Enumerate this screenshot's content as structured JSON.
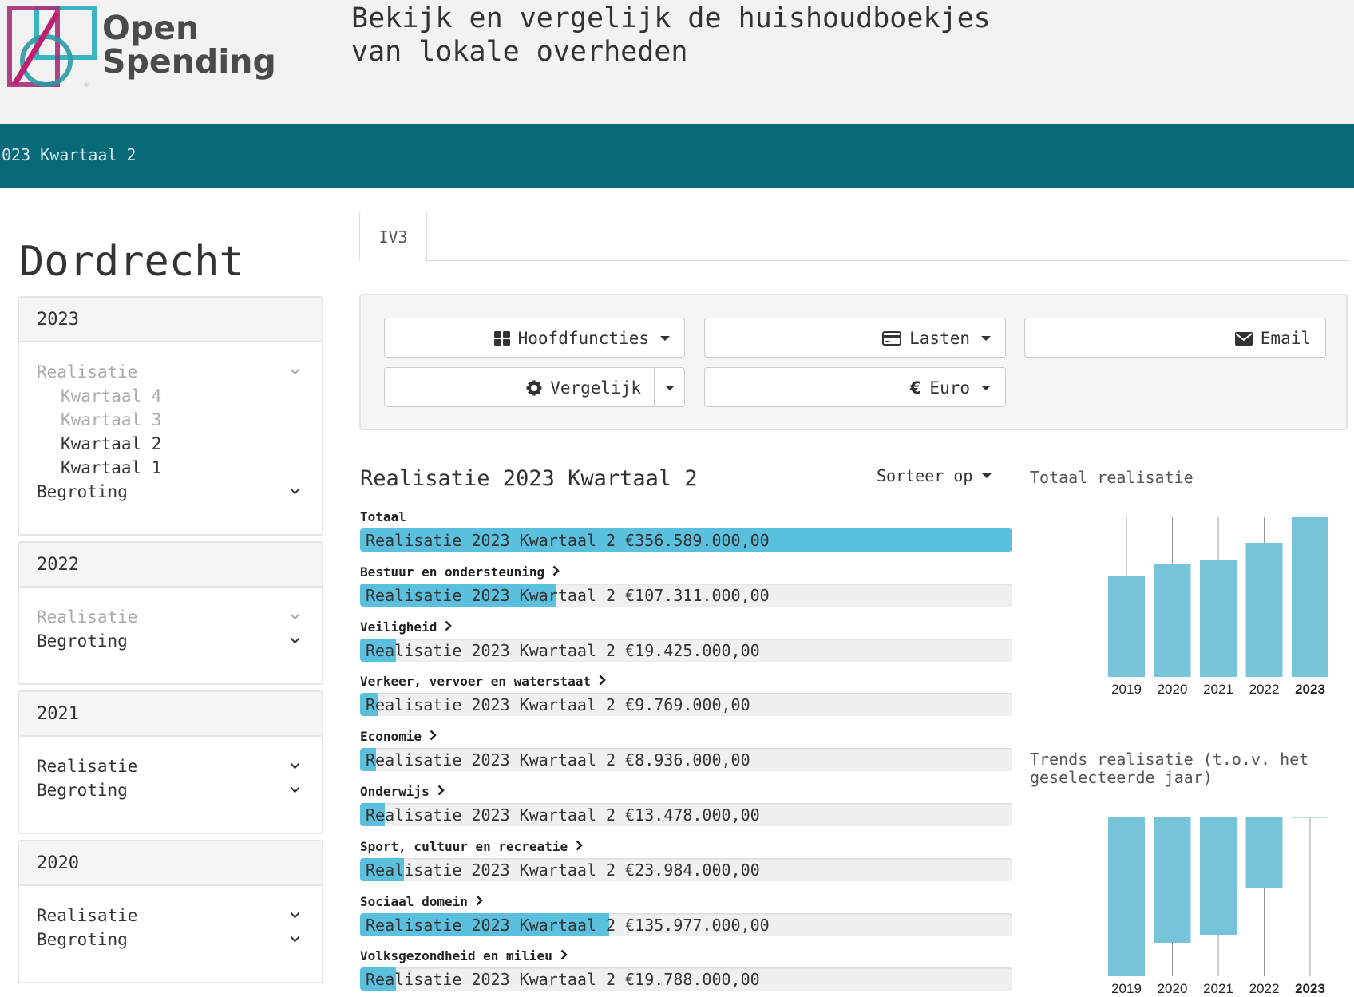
{
  "header": {
    "logo_line1": "Open",
    "logo_line2": "Spending",
    "tagline": "Bekijk en vergelijk de huishoudboekjes\nvan lokale overheden"
  },
  "period_bar": {
    "text": "023 Kwartaal 2"
  },
  "sidebar": {
    "city": "Dordrecht",
    "years": [
      {
        "year": "2023",
        "items": [
          {
            "label": "Realisatie",
            "level": 0,
            "muted": true,
            "chevron": true
          },
          {
            "label": "Kwartaal 4",
            "level": 1,
            "muted": true
          },
          {
            "label": "Kwartaal 3",
            "level": 1,
            "muted": true
          },
          {
            "label": "Kwartaal 2",
            "level": 1,
            "muted": false
          },
          {
            "label": "Kwartaal 1",
            "level": 1,
            "muted": false
          },
          {
            "label": "Begroting",
            "level": 0,
            "muted": false,
            "chevron": true
          }
        ]
      },
      {
        "year": "2022",
        "items": [
          {
            "label": "Realisatie",
            "level": 0,
            "muted": true,
            "chevron": true
          },
          {
            "label": "Begroting",
            "level": 0,
            "muted": false,
            "chevron": true
          }
        ]
      },
      {
        "year": "2021",
        "items": [
          {
            "label": "Realisatie",
            "level": 0,
            "muted": false,
            "chevron": true
          },
          {
            "label": "Begroting",
            "level": 0,
            "muted": false,
            "chevron": true
          }
        ]
      },
      {
        "year": "2020",
        "items": [
          {
            "label": "Realisatie",
            "level": 0,
            "muted": false,
            "chevron": true
          },
          {
            "label": "Begroting",
            "level": 0,
            "muted": false,
            "chevron": true
          }
        ]
      }
    ]
  },
  "tabs": {
    "active": "IV3"
  },
  "controls": {
    "hoofdfuncties": "Hoofdfuncties",
    "lasten": "Lasten",
    "email": "Email",
    "vergelijk": "Vergelijk",
    "euro": "Euro"
  },
  "realisatie": {
    "title": "Realisatie 2023 Kwartaal 2",
    "sort_label": "Sorteer op",
    "max_value": 356589000,
    "rows": [
      {
        "label": "Totaal",
        "value_text": "Realisatie 2023 Kwartaal 2 €356.589.000,00",
        "value": 356589000,
        "has_chevron": false
      },
      {
        "label": "Bestuur en ondersteuning",
        "value_text": "Realisatie 2023 Kwartaal 2 €107.311.000,00",
        "value": 107311000,
        "has_chevron": true
      },
      {
        "label": "Veiligheid",
        "value_text": "Realisatie 2023 Kwartaal 2 €19.425.000,00",
        "value": 19425000,
        "has_chevron": true
      },
      {
        "label": "Verkeer, vervoer en waterstaat",
        "value_text": "Realisatie 2023 Kwartaal 2 €9.769.000,00",
        "value": 9769000,
        "has_chevron": true
      },
      {
        "label": "Economie",
        "value_text": "Realisatie 2023 Kwartaal 2 €8.936.000,00",
        "value": 8936000,
        "has_chevron": true
      },
      {
        "label": "Onderwijs",
        "value_text": "Realisatie 2023 Kwartaal 2 €13.478.000,00",
        "value": 13478000,
        "has_chevron": true
      },
      {
        "label": "Sport, cultuur en recreatie",
        "value_text": "Realisatie 2023 Kwartaal 2 €23.984.000,00",
        "value": 23984000,
        "has_chevron": true
      },
      {
        "label": "Sociaal domein",
        "value_text": "Realisatie 2023 Kwartaal 2 €135.977.000,00",
        "value": 135977000,
        "has_chevron": true
      },
      {
        "label": "Volksgezondheid en milieu",
        "value_text": "Realisatie 2023 Kwartaal 2 €19.788.000,00",
        "value": 19788000,
        "has_chevron": true
      }
    ]
  },
  "chart_data": [
    {
      "type": "bar",
      "title": "Totaal realisatie",
      "categories": [
        "2019",
        "2020",
        "2021",
        "2022",
        "2023"
      ],
      "highlighted": "2023",
      "values": [
        0.63,
        0.71,
        0.73,
        0.84,
        1.0
      ],
      "ylim": [
        0,
        1
      ]
    },
    {
      "type": "bar",
      "title": "Trends realisatie (t.o.v. het geselecteerde jaar)",
      "categories": [
        "2019",
        "2020",
        "2021",
        "2022",
        "2023"
      ],
      "highlighted": "2023",
      "values": [
        -1.0,
        -0.79,
        -0.74,
        -0.45,
        0.0
      ],
      "ylim": [
        -1,
        0
      ]
    }
  ],
  "colors": {
    "teal": "#086978",
    "bar": "#5bc0de",
    "chart_bar": "#76c3da",
    "track": "#f0f0f0"
  }
}
